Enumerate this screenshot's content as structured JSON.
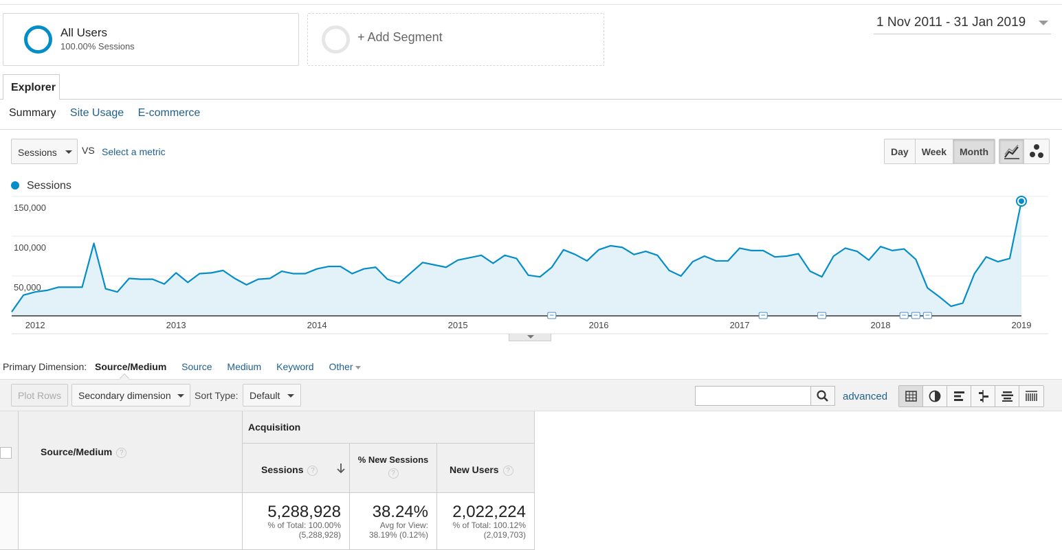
{
  "segments": {
    "all_users": {
      "title": "All Users",
      "subtitle": "100.00% Sessions"
    },
    "add_segment": {
      "label": "+ Add Segment"
    }
  },
  "date_range": "1 Nov 2011 - 31 Jan 2019",
  "explorer": {
    "tab": "Explorer",
    "subtabs": [
      "Summary",
      "Site Usage",
      "E-commerce"
    ]
  },
  "metric": {
    "selected": "Sessions",
    "vs": "VS",
    "select_metric": "Select a metric"
  },
  "periods": [
    "Day",
    "Week",
    "Month"
  ],
  "active_period": "Month",
  "chart_data": {
    "type": "area",
    "series": [
      {
        "name": "Sessions",
        "color": "#058dc7"
      }
    ],
    "y_ticks": [
      "150,000",
      "100,000",
      "50,000"
    ],
    "ylim": [
      0,
      150000
    ],
    "x_ticks": [
      "2012",
      "2013",
      "2014",
      "2015",
      "2016",
      "2017",
      "2018",
      "2019"
    ],
    "x_start": "2011-11",
    "values": [
      5000,
      26000,
      30000,
      32000,
      36000,
      36000,
      36000,
      91000,
      34000,
      30000,
      47000,
      46000,
      46000,
      40000,
      54000,
      42000,
      53000,
      54000,
      57000,
      47000,
      39000,
      46000,
      47000,
      56000,
      53000,
      53000,
      59000,
      62000,
      62000,
      53000,
      59000,
      61000,
      46000,
      41000,
      54000,
      67000,
      64000,
      61000,
      70000,
      73000,
      76000,
      66000,
      76000,
      72000,
      51000,
      49000,
      61000,
      83000,
      77000,
      69000,
      83000,
      88000,
      86000,
      77000,
      81000,
      76000,
      57000,
      50000,
      68000,
      75000,
      69000,
      69000,
      85000,
      82000,
      82000,
      74000,
      75000,
      78000,
      56000,
      49000,
      75000,
      85000,
      81000,
      70000,
      87000,
      82000,
      84000,
      71000,
      35000,
      24000,
      12000,
      16000,
      53000,
      74000,
      68000,
      72000,
      144000
    ],
    "annotation_months": [
      "2015-09",
      "2017-03",
      "2017-08",
      "2018-03",
      "2018-04",
      "2018-05"
    ]
  },
  "primary_dimension": {
    "label": "Primary Dimension:",
    "items": [
      "Source/Medium",
      "Source",
      "Medium",
      "Keyword",
      "Other"
    ],
    "active": "Source/Medium"
  },
  "toolbar": {
    "plot_rows": "Plot Rows",
    "secondary_dimension": "Secondary dimension",
    "sort_type_label": "Sort Type:",
    "sort_type_value": "Default",
    "search_value": "",
    "advanced": "advanced"
  },
  "table": {
    "dimension_header": "Source/Medium",
    "group_header": "Acquisition",
    "columns": [
      {
        "header": "Sessions",
        "total": "5,288,928",
        "sub1": "% of Total: 100.00%",
        "sub2": "(5,288,928)"
      },
      {
        "header": "% New Sessions",
        "total": "38.24%",
        "sub1": "Avg for View:",
        "sub2": "38.19% (0.12%)"
      },
      {
        "header": "New Users",
        "total": "2,022,224",
        "sub1": "% of Total: 100.12%",
        "sub2": "(2,019,703)"
      }
    ]
  },
  "icons": {
    "help": "?",
    "sort_arrow": "arrow-down-icon",
    "search": "magnifier-icon",
    "line_chart": "line-chart-icon",
    "motion_chart": "bubble-chart-icon"
  }
}
